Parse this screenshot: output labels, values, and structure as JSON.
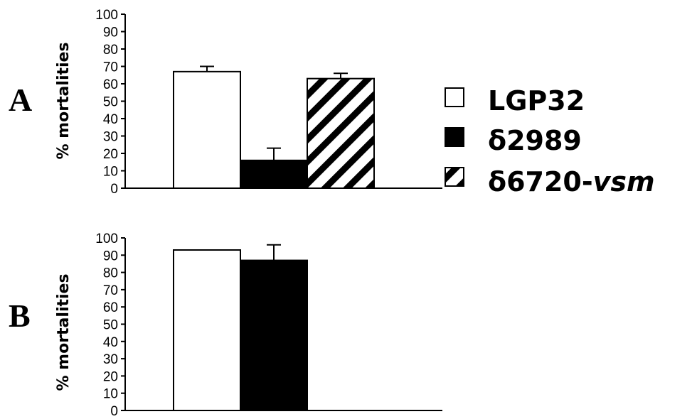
{
  "chart_data": [
    {
      "type": "bar",
      "panel": "A",
      "categories": [
        "LGP32",
        "δ2989",
        "δ6720-vsm"
      ],
      "values": [
        67,
        16,
        63
      ],
      "errors": [
        3,
        7,
        3
      ],
      "ylabel": "% mortalities",
      "ylim": [
        0,
        100
      ],
      "yticks": [
        0,
        10,
        20,
        30,
        40,
        50,
        60,
        70,
        80,
        90,
        100
      ],
      "grid": false
    },
    {
      "type": "bar",
      "panel": "B",
      "categories": [
        "LGP32",
        "δ2989"
      ],
      "values": [
        93,
        87
      ],
      "errors": [
        0,
        9
      ],
      "ylabel": "% mortalities",
      "ylim": [
        0,
        100
      ],
      "yticks": [
        0,
        10,
        20,
        30,
        40,
        50,
        60,
        70,
        80,
        90,
        100
      ],
      "grid": false
    }
  ],
  "legend": {
    "placement": "right",
    "items": [
      {
        "name": "LGP32",
        "prefix": "LGP32",
        "italic": "",
        "fill": "white"
      },
      {
        "name": "δ2989",
        "prefix": "δ2989",
        "italic": "",
        "fill": "black"
      },
      {
        "name": "δ6720-vsm",
        "prefix": "δ6720-",
        "italic": "vsm",
        "fill": "hatch"
      }
    ]
  },
  "colors": {
    "ink": "#000000",
    "paper": "#ffffff"
  }
}
